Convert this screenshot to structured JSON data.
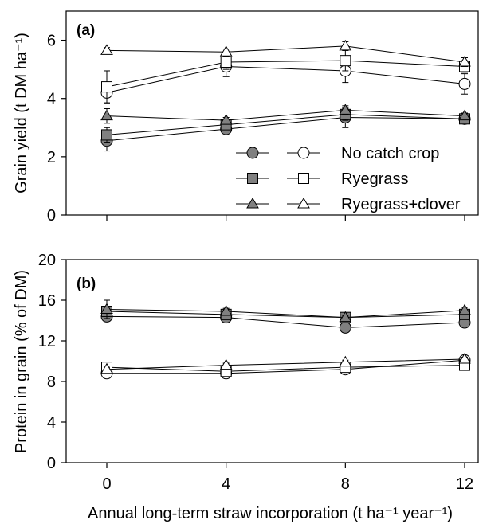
{
  "chart_data": [
    {
      "type": "line",
      "panel_label": "(a)",
      "ylabel": "Grain yield (t DM ha⁻¹)",
      "ylim": [
        0,
        7
      ],
      "yticks": [
        0,
        2,
        4,
        6
      ],
      "x": [
        0,
        4,
        8,
        12
      ],
      "legend": "bottom-right",
      "series": [
        {
          "name": "No catch crop",
          "marker": "circle",
          "fill": "#808080",
          "values": [
            2.55,
            2.95,
            3.35,
            3.3
          ],
          "errors": [
            0.35,
            0.15,
            0.35,
            0.15
          ]
        },
        {
          "name": "Ryegrass",
          "marker": "square",
          "fill": "#808080",
          "values": [
            2.75,
            3.1,
            3.45,
            3.3
          ],
          "errors": [
            0.25,
            0.15,
            0.2,
            0.1
          ]
        },
        {
          "name": "Ryegrass+clover",
          "marker": "triangle",
          "fill": "#808080",
          "values": [
            3.4,
            3.25,
            3.6,
            3.4
          ],
          "errors": [
            0.25,
            0.1,
            0.15,
            0.1
          ]
        },
        {
          "name": "No catch crop",
          "marker": "circle",
          "fill": "#ffffff",
          "values": [
            4.2,
            5.1,
            4.95,
            4.5
          ],
          "errors": [
            0.35,
            0.35,
            0.4,
            0.35
          ]
        },
        {
          "name": "Ryegrass",
          "marker": "square",
          "fill": "#ffffff",
          "values": [
            4.4,
            5.25,
            5.3,
            5.1
          ],
          "errors": [
            0.55,
            0.25,
            0.35,
            0.2
          ]
        },
        {
          "name": "Ryegrass+clover",
          "marker": "triangle",
          "fill": "#ffffff",
          "values": [
            5.65,
            5.6,
            5.8,
            5.25
          ],
          "errors": [
            0.1,
            0.1,
            0.15,
            0.15
          ]
        }
      ]
    },
    {
      "type": "line",
      "panel_label": "(b)",
      "ylabel": "Protein in grain (% of DM)",
      "xlabel": "Annual long-term straw incorporation (t ha⁻¹ year⁻¹)",
      "ylim": [
        0,
        20
      ],
      "yticks": [
        0,
        4,
        8,
        12,
        16,
        20
      ],
      "x": [
        0,
        4,
        8,
        12
      ],
      "series": [
        {
          "name": "No catch crop",
          "marker": "circle",
          "fill": "#808080",
          "values": [
            14.4,
            14.3,
            13.3,
            13.8
          ],
          "errors": [
            0.4,
            0.3,
            0.2,
            0.2
          ]
        },
        {
          "name": "Ryegrass",
          "marker": "square",
          "fill": "#808080",
          "values": [
            14.9,
            14.6,
            14.3,
            14.6
          ],
          "errors": [
            0.3,
            0.3,
            0.2,
            0.2
          ]
        },
        {
          "name": "Ryegrass+clover",
          "marker": "triangle",
          "fill": "#808080",
          "values": [
            15.1,
            14.9,
            14.3,
            15.0
          ],
          "errors": [
            0.9,
            0.3,
            0.2,
            0.3
          ]
        },
        {
          "name": "No catch crop",
          "marker": "circle",
          "fill": "#ffffff",
          "values": [
            8.8,
            8.8,
            9.2,
            10.1
          ],
          "errors": [
            0.2,
            0.2,
            0.2,
            0.2
          ]
        },
        {
          "name": "Ryegrass",
          "marker": "square",
          "fill": "#ffffff",
          "values": [
            9.4,
            9.0,
            9.4,
            9.6
          ],
          "errors": [
            0.2,
            0.2,
            0.2,
            0.2
          ]
        },
        {
          "name": "Ryegrass+clover",
          "marker": "triangle",
          "fill": "#ffffff",
          "values": [
            9.2,
            9.6,
            9.9,
            10.2
          ],
          "errors": [
            0.2,
            0.2,
            0.2,
            0.2
          ]
        }
      ]
    }
  ],
  "legend_entries": [
    "No catch crop",
    "Ryegrass",
    "Ryegrass+clover"
  ],
  "xtick_labels": [
    "0",
    "4",
    "8",
    "12"
  ]
}
